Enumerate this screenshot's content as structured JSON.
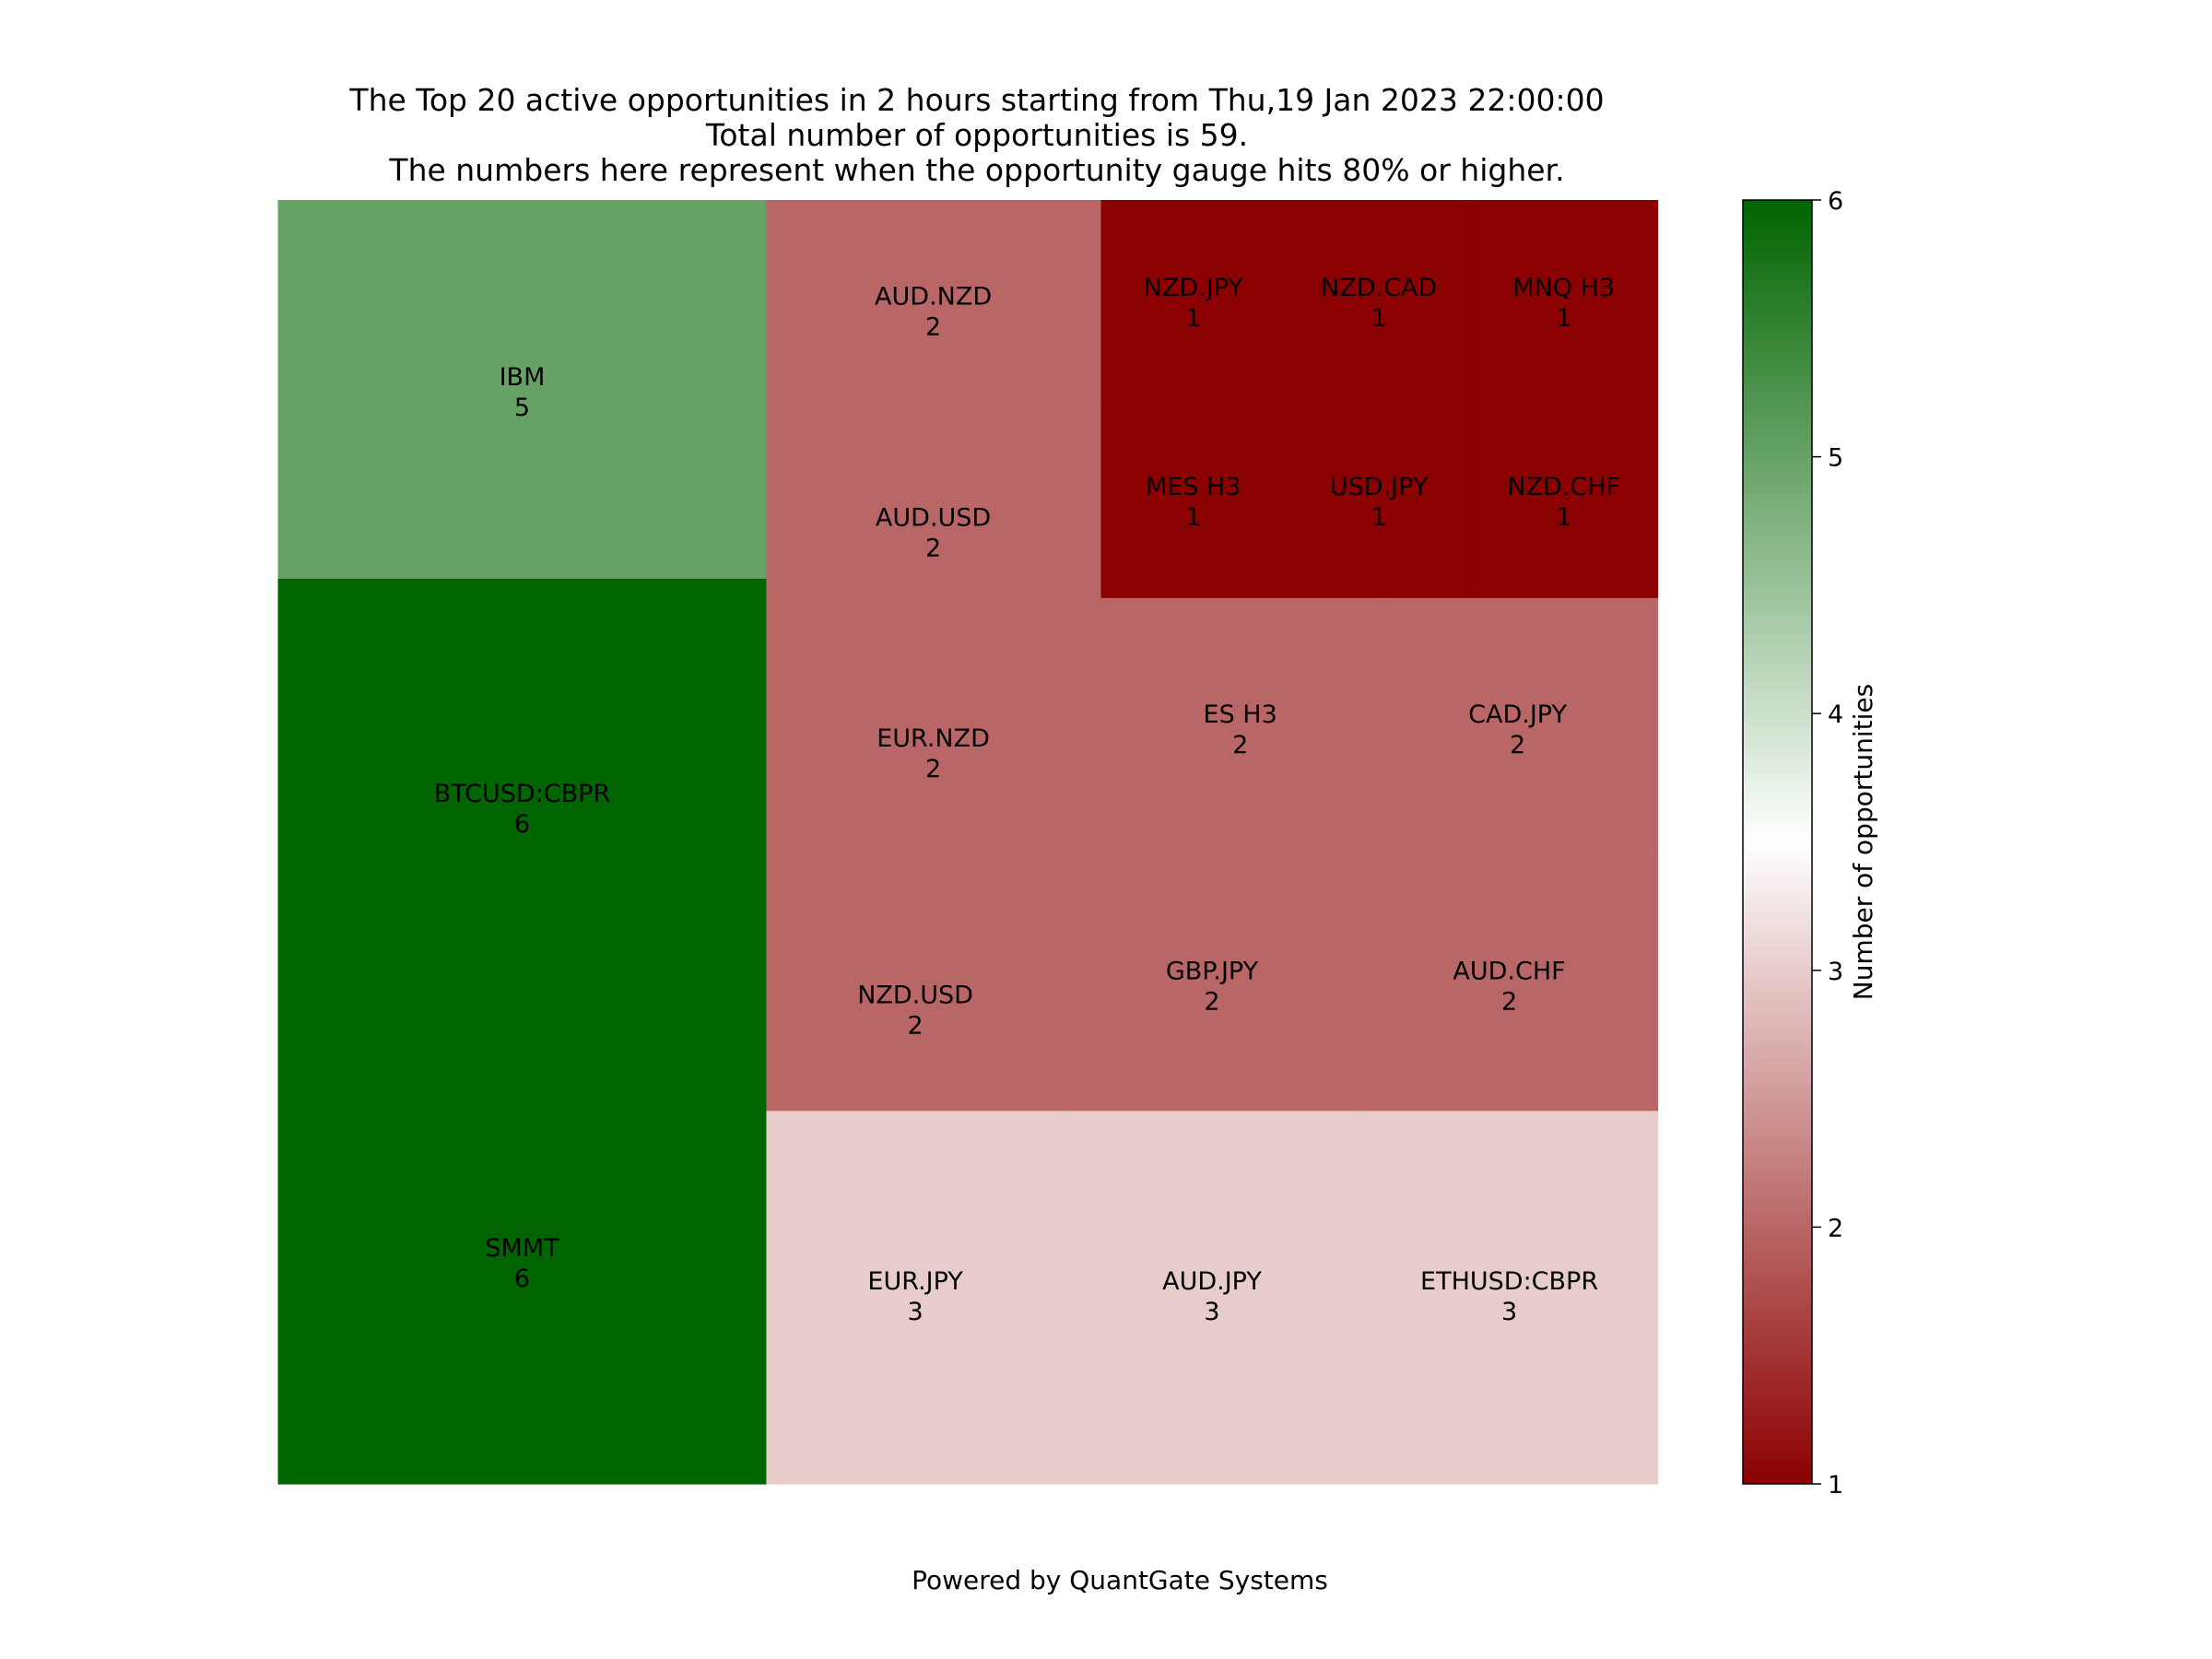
{
  "title_lines": [
    "The Top 20 active opportunities in 2 hours starting from Thu,19 Jan 2023 22:00:00",
    "Total number of opportunities is 59.",
    "The numbers here represent when the opportunity gauge hits 80% or higher."
  ],
  "footer": "Powered by QuantGate Systems",
  "chart_data": {
    "type": "heatmap",
    "subtype": "treemap",
    "title": "The Top 20 active opportunities in 2 hours starting from Thu,19 Jan 2023 22:00:00\nTotal number of opportunities is 59.\nThe numbers here represent when the opportunity gauge hits 80% or higher.",
    "total": 59,
    "items": [
      {
        "label": "IBM",
        "value": 5
      },
      {
        "label": "BTCUSD:CBPR",
        "value": 6
      },
      {
        "label": "SMMT",
        "value": 6
      },
      {
        "label": "AUD.NZD",
        "value": 2
      },
      {
        "label": "AUD.USD",
        "value": 2
      },
      {
        "label": "EUR.NZD",
        "value": 2
      },
      {
        "label": "NZD.USD",
        "value": 2
      },
      {
        "label": "NZD.JPY",
        "value": 1
      },
      {
        "label": "NZD.CAD",
        "value": 1
      },
      {
        "label": "MNQ H3",
        "value": 1
      },
      {
        "label": "MES H3",
        "value": 1
      },
      {
        "label": "USD.JPY",
        "value": 1
      },
      {
        "label": "NZD.CHF",
        "value": 1
      },
      {
        "label": "ES H3",
        "value": 2
      },
      {
        "label": "CAD.JPY",
        "value": 2
      },
      {
        "label": "GBP.JPY",
        "value": 2
      },
      {
        "label": "AUD.CHF",
        "value": 2
      },
      {
        "label": "EUR.JPY",
        "value": 3
      },
      {
        "label": "AUD.JPY",
        "value": 3
      },
      {
        "label": "ETHUSD:CBPR",
        "value": 3
      }
    ],
    "colorbar": {
      "label": "Number of opportunities",
      "range": [
        1,
        6
      ],
      "ticks": [
        "1",
        "2",
        "3",
        "4",
        "5",
        "6"
      ],
      "color_stops": [
        "#8b0000",
        "#ffffff",
        "#006400"
      ]
    },
    "legend": "none",
    "grid": false
  }
}
